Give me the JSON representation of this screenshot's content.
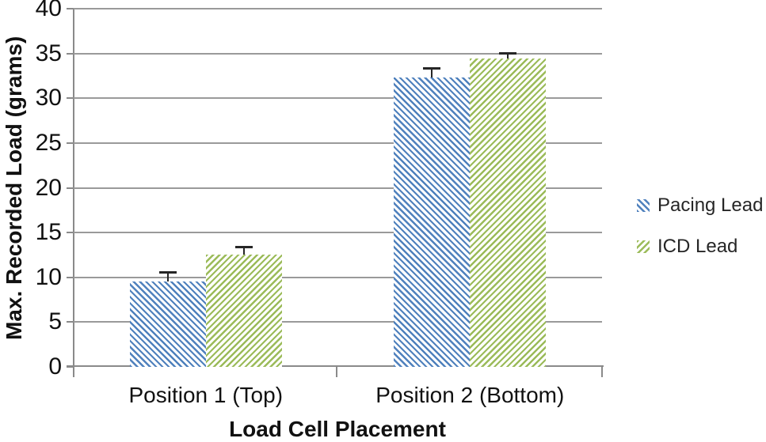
{
  "chart_data": {
    "type": "bar",
    "title": "",
    "categories": [
      "Position 1 (Top)",
      "Position 2 (Bottom)"
    ],
    "series": [
      {
        "name": "Pacing Lead",
        "values": [
          9.5,
          32.3
        ],
        "errors_plus": [
          1.0,
          1.0
        ],
        "color": "#4F81BD",
        "hatch": "backslash"
      },
      {
        "name": "ICD Lead",
        "values": [
          12.5,
          34.4
        ],
        "errors_plus": [
          0.8,
          0.6
        ],
        "color": "#9BBB59",
        "hatch": "slash"
      }
    ],
    "xlabel": "Load Cell Placement",
    "ylabel": "Max. Recorded Load (grams)",
    "ylim": [
      0,
      40
    ],
    "yticks": [
      0,
      5,
      10,
      15,
      20,
      25,
      30,
      35,
      40
    ],
    "grid": true,
    "legend_position": "right",
    "error_bars": "plus-direction"
  },
  "colors": {
    "pacing_lead_blue": "#4F81BD",
    "icd_lead_green": "#9BBB59",
    "gridline": "#9a9a9a",
    "axis_line": "#8a8a8a",
    "error_bar": "#262626",
    "text": "#111111",
    "background": "#ffffff"
  }
}
